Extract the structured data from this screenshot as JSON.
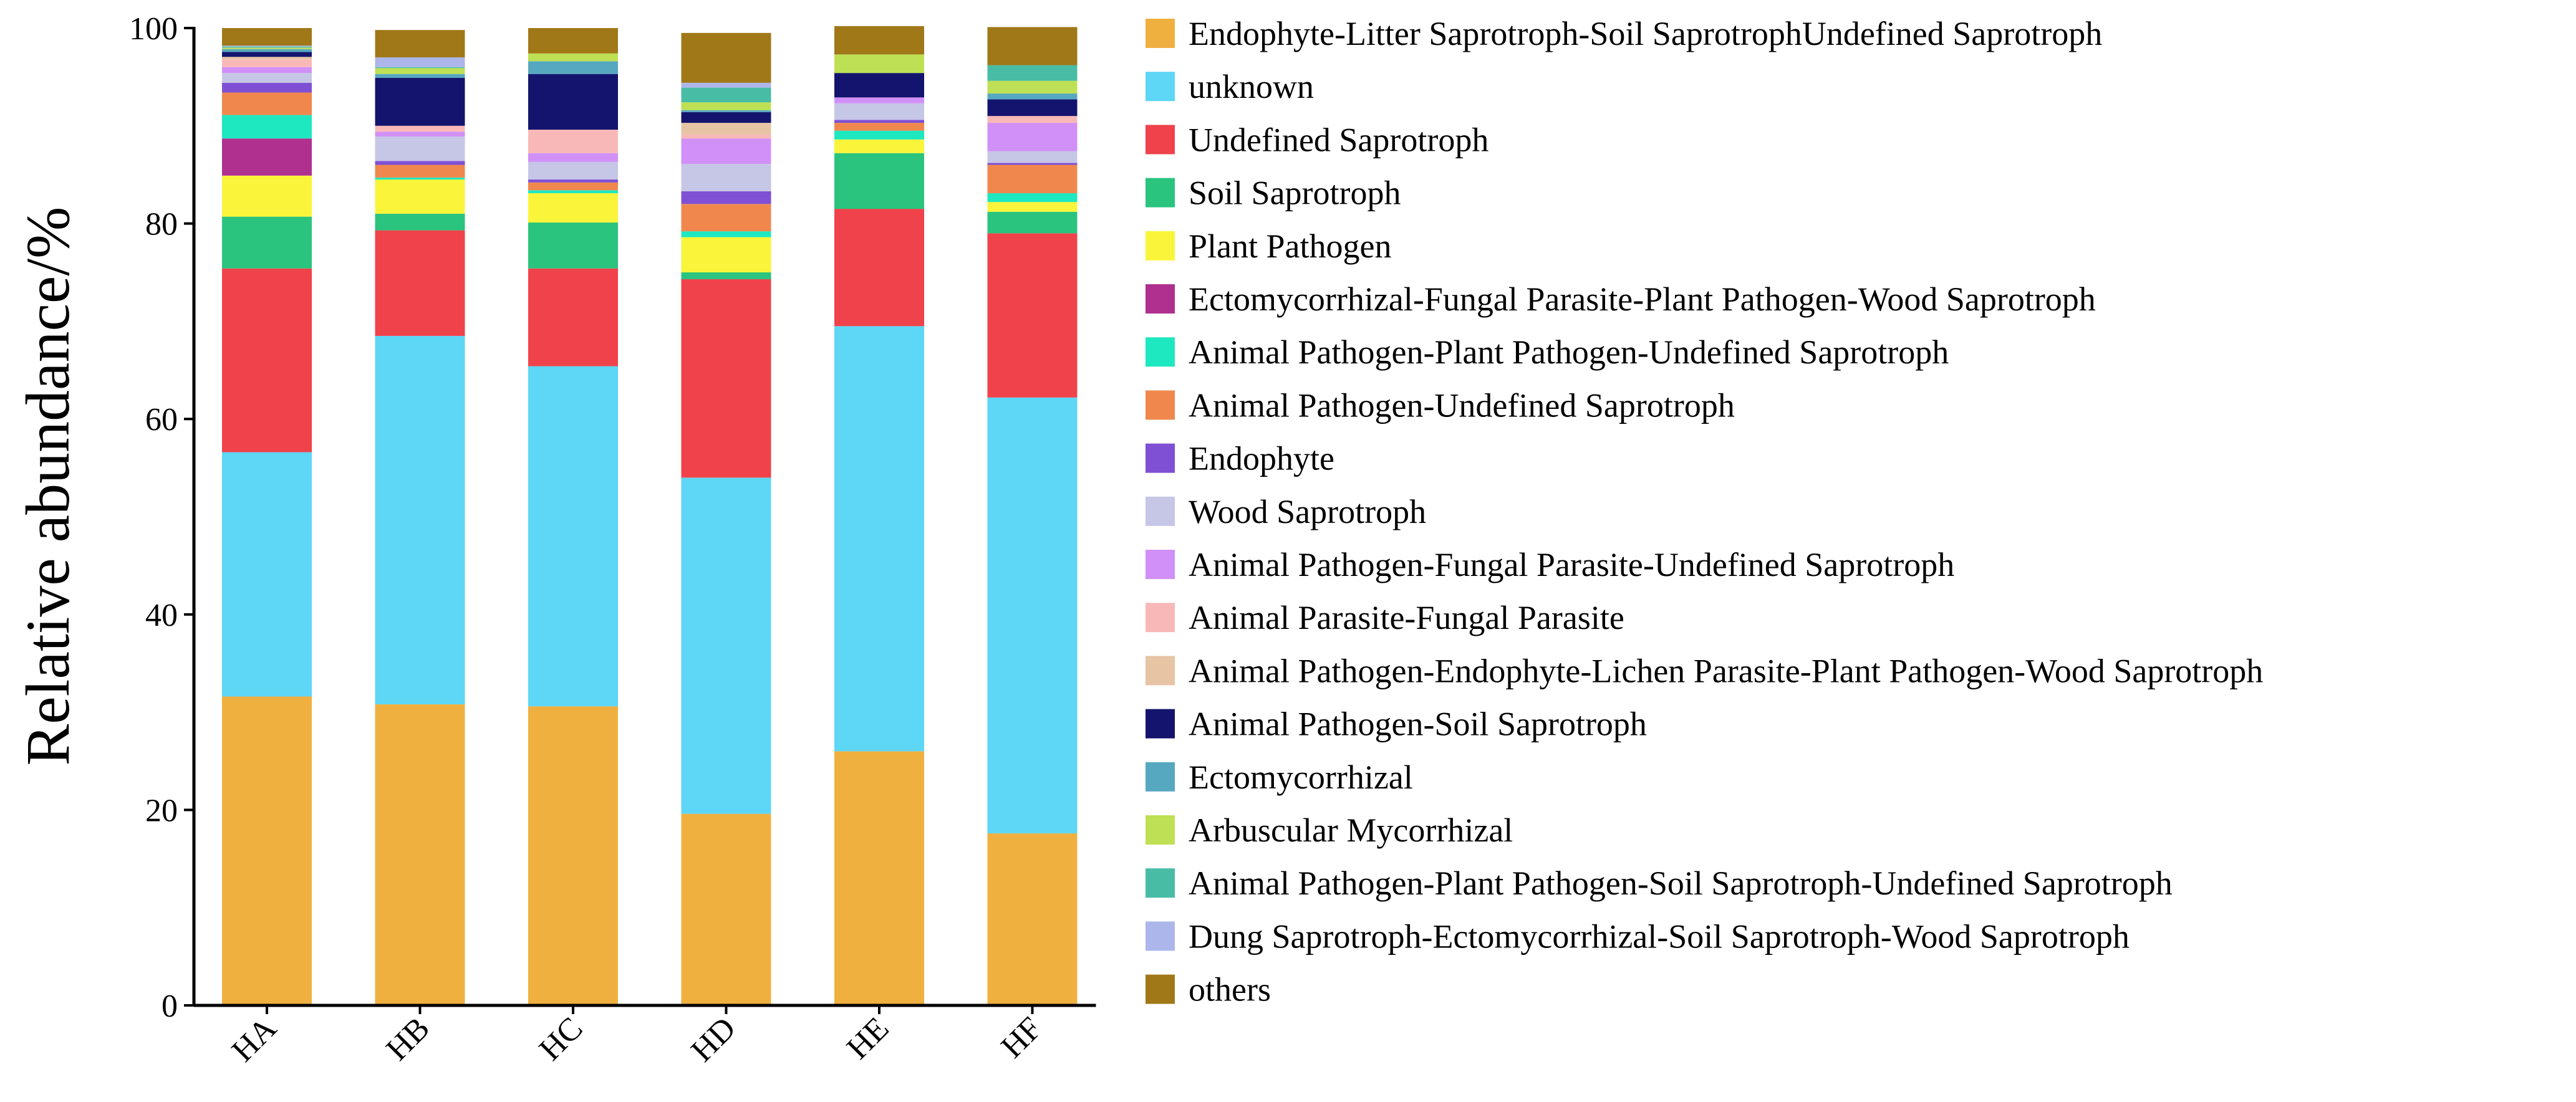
{
  "chart_data": {
    "type": "bar",
    "stacked": true,
    "title": "",
    "xlabel": "",
    "ylabel": "Relative abundance/%",
    "ylim": [
      0,
      100
    ],
    "yticks": [
      0,
      20,
      40,
      60,
      80,
      100
    ],
    "categories": [
      "HA",
      "HB",
      "HC",
      "HD",
      "HE",
      "HF"
    ],
    "legend_position": "right",
    "series": [
      {
        "name": "Endophyte-Litter Saprotroph-Soil SaprotrophUndefined Saprotroph",
        "color": "#F0B040",
        "values": [
          31.6,
          30.8,
          30.6,
          19.6,
          26.0,
          17.6
        ]
      },
      {
        "name": "unknown",
        "color": "#5ED6F5",
        "values": [
          25.0,
          37.7,
          34.8,
          34.4,
          43.5,
          44.6
        ]
      },
      {
        "name": "Undefined Saprotroph",
        "color": "#F0424A",
        "values": [
          18.8,
          10.8,
          10.0,
          20.3,
          12.0,
          16.8
        ]
      },
      {
        "name": "Soil Saprotroph",
        "color": "#2AC47E",
        "values": [
          5.3,
          1.7,
          4.7,
          0.7,
          5.7,
          2.2
        ]
      },
      {
        "name": "Plant Pathogen",
        "color": "#FAF53A",
        "values": [
          4.2,
          3.5,
          3.0,
          3.6,
          1.4,
          1.0
        ]
      },
      {
        "name": "Ectomycorrhizal-Fungal Parasite-Plant Pathogen-Wood Saprotroph",
        "color": "#B03090",
        "values": [
          3.8,
          0,
          0,
          0,
          0,
          0
        ]
      },
      {
        "name": "Animal Pathogen-Plant Pathogen-Undefined Saprotroph",
        "color": "#1EE8C0",
        "values": [
          2.4,
          0.2,
          0.3,
          0.6,
          0.9,
          0.9
        ]
      },
      {
        "name": "Animal Pathogen-Undefined Saprotroph",
        "color": "#F0884E",
        "values": [
          2.3,
          1.3,
          0.8,
          2.8,
          0.8,
          2.9
        ]
      },
      {
        "name": "Endophyte",
        "color": "#7F50D4",
        "values": [
          1.0,
          0.4,
          0.3,
          1.3,
          0.3,
          0.2
        ]
      },
      {
        "name": "Wood Saprotroph",
        "color": "#C6C6E6",
        "values": [
          1.0,
          2.5,
          1.8,
          2.8,
          1.7,
          1.2
        ]
      },
      {
        "name": "Animal Pathogen-Fungal Parasite-Undefined Saprotroph",
        "color": "#D190F7",
        "values": [
          0.6,
          0.5,
          0.9,
          2.6,
          0.6,
          2.9
        ]
      },
      {
        "name": "Animal Parasite-Fungal Parasite",
        "color": "#F9B8B8",
        "values": [
          0.8,
          0.6,
          2.4,
          0.4,
          0,
          0.7
        ]
      },
      {
        "name": "Animal Pathogen-Endophyte-Lichen Parasite-Plant Pathogen-Wood Saprotroph",
        "color": "#E6C4A4",
        "values": [
          0.25,
          0,
          0,
          1.2,
          0,
          0
        ]
      },
      {
        "name": "Animal Pathogen-Soil Saprotroph",
        "color": "#14146E",
        "values": [
          0.5,
          4.9,
          5.7,
          1.1,
          2.5,
          1.7
        ]
      },
      {
        "name": "Ectomycorrhizal",
        "color": "#56A8C0",
        "values": [
          0.3,
          0.4,
          1.3,
          0.2,
          0,
          0.6
        ]
      },
      {
        "name": "Arbuscular Mycorrhizal",
        "color": "#BEE054",
        "values": [
          0.15,
          0.6,
          0.8,
          0.8,
          1.9,
          1.3
        ]
      },
      {
        "name": "Animal Pathogen-Plant Pathogen-Soil Saprotroph-Undefined Saprotroph",
        "color": "#48BCA4",
        "values": [
          0.1,
          0.1,
          0,
          1.5,
          0,
          1.6
        ]
      },
      {
        "name": "Dung Saprotroph-Ectomycorrhizal-Soil Saprotroph-Wood Saprotroph",
        "color": "#ADB6EA",
        "values": [
          0.1,
          1.0,
          0,
          0.5,
          0,
          0
        ]
      },
      {
        "name": "others",
        "color": "#A07818",
        "values": [
          1.8,
          2.8,
          2.6,
          5.1,
          2.9,
          3.9
        ]
      }
    ]
  }
}
